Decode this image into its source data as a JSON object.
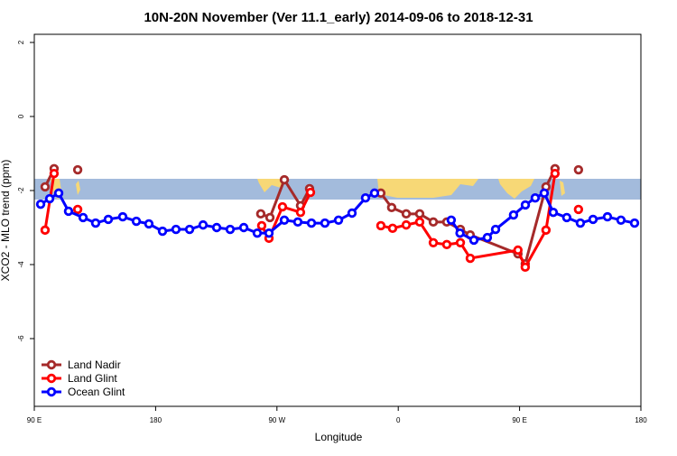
{
  "chart_data": {
    "type": "line",
    "title": "10N-20N November (Ver 11.1_early)   2014-09-06 to 2018-12-31",
    "x_label": "Longitude",
    "y_label": "XCO2 - MLO trend (ppm)",
    "xlim": [
      90,
      540
    ],
    "xticks": [
      {
        "value": 90,
        "label": "90 E"
      },
      180,
      {
        "value": 270,
        "label": "90 W"
      },
      {
        "value": 360,
        "label": "0"
      },
      {
        "value": 450,
        "label": "90 E"
      },
      {
        "value": 540,
        "label": "180"
      }
    ],
    "ylim": [
      -7.83,
      2.22
    ],
    "yticks": [
      2,
      0,
      -2,
      -4,
      -6
    ],
    "legend": "bottom left",
    "series": [
      {
        "name": "Land Nadir",
        "color": "#a52a2a",
        "x": [
          98,
          104.7,
          113,
          122.2,
          190,
          258,
          264.8,
          275.5,
          287.5,
          294.2,
          320,
          347.1,
          355.1,
          365.9,
          375.9,
          386,
          396,
          406.1,
          413.4,
          448.8,
          454.2,
          469.6,
          476.3,
          485,
          493.7
        ],
        "values": [
          -1.9,
          -1.41,
          null,
          -1.44,
          null,
          -2.63,
          -2.73,
          -1.71,
          -2.41,
          -1.95,
          null,
          -2.07,
          -2.46,
          -2.63,
          -2.63,
          -2.85,
          -2.85,
          -3.05,
          -3.2,
          -3.71,
          -3.98,
          -1.9,
          -1.41,
          null,
          -1.44
        ]
      },
      {
        "name": "Land Glint",
        "color": "#ff0000",
        "x": [
          98,
          104.7,
          113,
          122.2,
          190,
          258.7,
          264.1,
          274.1,
          287.5,
          294.9,
          320,
          347.1,
          355.8,
          365.9,
          375.9,
          386,
          396,
          406.1,
          413.4,
          448.8,
          454.2,
          469.6,
          476.3,
          485,
          493.7
        ],
        "values": [
          -3.07,
          -1.54,
          null,
          -2.51,
          null,
          -2.95,
          -3.29,
          -2.44,
          -2.59,
          -2.05,
          null,
          -2.95,
          -3.02,
          -2.93,
          -2.85,
          -3.41,
          -3.46,
          -3.41,
          -3.83,
          -3.61,
          -4.07,
          -3.07,
          -1.54,
          null,
          -2.51
        ]
      },
      {
        "name": "Ocean Glint",
        "color": "#0000ff",
        "x": [
          94.7,
          101.4,
          108.1,
          115.4,
          126.2,
          135.5,
          144.9,
          155.6,
          165.7,
          175,
          185.1,
          195.1,
          205.2,
          215.2,
          225.3,
          235.3,
          245.4,
          255.4,
          264.1,
          275.5,
          285.5,
          295.6,
          305.6,
          315.7,
          325.7,
          335.7,
          342.4,
          370,
          399.3,
          405.8,
          416.1,
          426.1,
          432.2,
          445.5,
          454.3,
          461.6,
          468.3,
          475,
          485,
          495.1,
          504.5,
          515.2,
          525.2,
          535.3
        ],
        "values": [
          -2.37,
          -2.22,
          -2.07,
          -2.56,
          -2.73,
          -2.88,
          -2.78,
          -2.71,
          -2.83,
          -2.9,
          -3.1,
          -3.05,
          -3.05,
          -2.93,
          -3.0,
          -3.05,
          -3.0,
          -3.15,
          -3.15,
          -2.8,
          -2.85,
          -2.88,
          -2.88,
          -2.8,
          -2.61,
          -2.2,
          -2.07,
          null,
          -2.8,
          -3.15,
          -3.34,
          -3.27,
          -3.05,
          -2.66,
          -2.39,
          -2.2,
          -2.07,
          -2.59,
          -2.73,
          -2.88,
          -2.78,
          -2.71,
          -2.8,
          -2.88
        ]
      }
    ]
  }
}
